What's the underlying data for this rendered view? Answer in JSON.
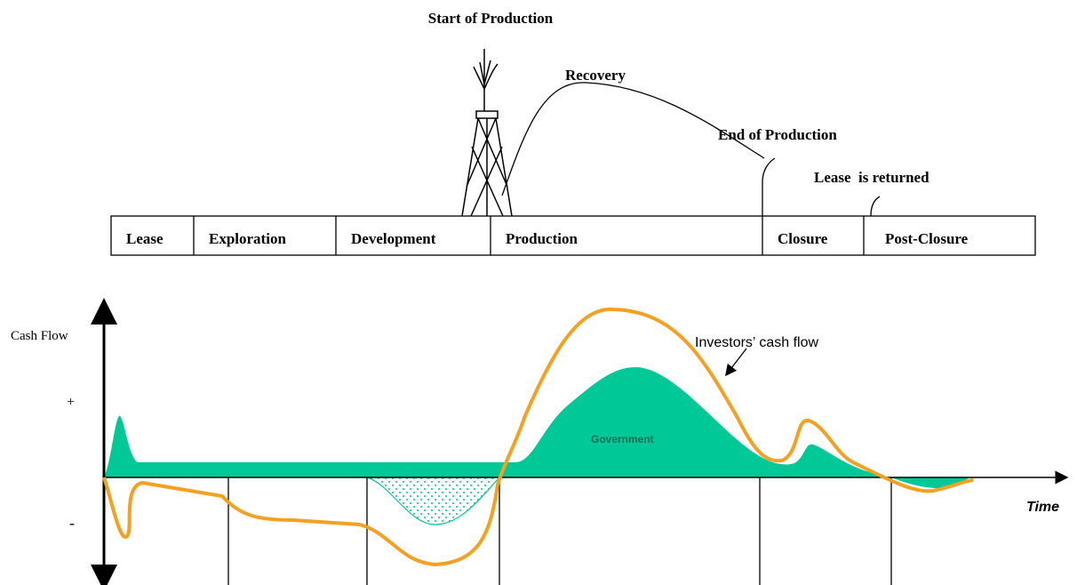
{
  "milestones": {
    "start": "Start of Production",
    "recovery": "Recovery",
    "end": "End of Production",
    "lease_returned": "Lease  is returned"
  },
  "phases": [
    "Lease",
    "Exploration",
    "Development",
    "Production",
    "Closure",
    "Post-Closure"
  ],
  "cash_chart": {
    "y_label": "Cash Flow",
    "plus": "+",
    "minus": "-",
    "government": "Government",
    "investors": "Investors’ cash flow",
    "x_label": "Time"
  }
}
